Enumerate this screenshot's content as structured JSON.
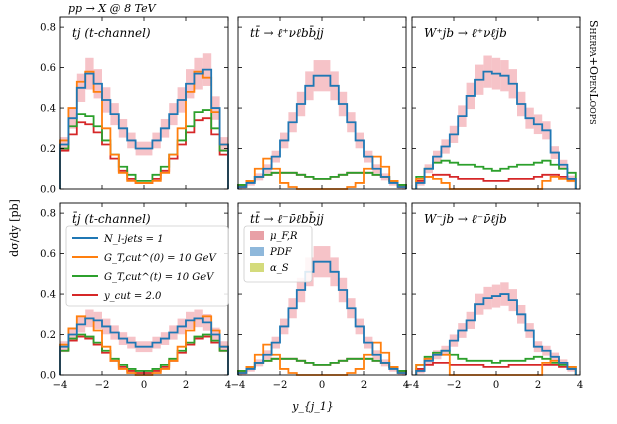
{
  "figure": {
    "process_label": "pp → X @ 8 TeV",
    "generator_label": "Sherpa+OpenLoops",
    "ylabel": "dσ/dy [pb]",
    "xlabel": "y_{j_1}",
    "xticks": [
      "−4",
      "−2",
      "0",
      "2",
      "4"
    ],
    "yticks": [
      "0.0",
      "0.2",
      "0.4",
      "0.6",
      "0.8"
    ]
  },
  "legend_cuts": [
    {
      "label": "N_l-jets = 1",
      "color": "#1f77b4"
    },
    {
      "label": "G_T,cut^(0) = 10 GeV",
      "color": "#ff7f0e"
    },
    {
      "label": "G_T,cut^(t) = 10 GeV",
      "color": "#2ca02c"
    },
    {
      "label": "y_cut = 2.0",
      "color": "#d62728"
    }
  ],
  "legend_unc": [
    {
      "label": "μ_F,R",
      "color": "#e8a0a6"
    },
    {
      "label": "PDF",
      "color": "#8fb8db"
    },
    {
      "label": "α_S",
      "color": "#d4db7c"
    }
  ],
  "colors": {
    "blue": "#1f77b4",
    "orange": "#ff7f0e",
    "green": "#2ca02c",
    "red": "#d62728",
    "band": "#f2a9b0"
  },
  "chart_data": [
    {
      "type": "line",
      "title": "tj (t-channel)",
      "xlim": [
        -4,
        4
      ],
      "ylim": [
        0,
        0.85
      ],
      "xlabel": "y_{j_1}",
      "ylabel": "dσ/dy [pb]",
      "x": [
        -3.8,
        -3.4,
        -3.0,
        -2.6,
        -2.2,
        -1.8,
        -1.4,
        -1.0,
        -0.6,
        -0.2,
        0.2,
        0.6,
        1.0,
        1.4,
        1.8,
        2.2,
        2.6,
        3.0,
        3.4,
        3.8
      ],
      "series": [
        {
          "name": "N_l-jets = 1",
          "values": [
            0.22,
            0.35,
            0.5,
            0.57,
            0.52,
            0.44,
            0.37,
            0.3,
            0.24,
            0.2,
            0.2,
            0.24,
            0.3,
            0.37,
            0.44,
            0.52,
            0.57,
            0.59,
            0.4,
            0.22
          ]
        },
        {
          "name": "G_T,cut^(0) = 10 GeV",
          "values": [
            0.24,
            0.4,
            0.53,
            0.58,
            0.48,
            0.3,
            0.17,
            0.08,
            0.04,
            0.03,
            0.03,
            0.04,
            0.08,
            0.17,
            0.3,
            0.48,
            0.58,
            0.55,
            0.38,
            0.22
          ]
        },
        {
          "name": "G_T,cut^(t) = 10 GeV",
          "values": [
            0.2,
            0.31,
            0.37,
            0.36,
            0.31,
            0.24,
            0.17,
            0.11,
            0.07,
            0.04,
            0.04,
            0.07,
            0.11,
            0.17,
            0.24,
            0.31,
            0.38,
            0.39,
            0.3,
            0.19
          ]
        },
        {
          "name": "y_cut = 2.0",
          "values": [
            0.19,
            0.27,
            0.33,
            0.32,
            0.28,
            0.22,
            0.15,
            0.09,
            0.05,
            0.03,
            0.03,
            0.05,
            0.09,
            0.15,
            0.22,
            0.28,
            0.34,
            0.35,
            0.27,
            0.17
          ]
        }
      ]
    },
    {
      "type": "line",
      "title": "tt̄ → ℓ⁺νℓbb̄jj",
      "xlim": [
        -4,
        4
      ],
      "ylim": [
        0,
        0.85
      ],
      "x": [
        -3.8,
        -3.4,
        -3.0,
        -2.6,
        -2.2,
        -1.8,
        -1.4,
        -1.0,
        -0.6,
        -0.2,
        0.2,
        0.6,
        1.0,
        1.4,
        1.8,
        2.2,
        2.6,
        3.0,
        3.4,
        3.8
      ],
      "series": [
        {
          "name": "N_l-jets = 1",
          "values": [
            0.01,
            0.03,
            0.06,
            0.1,
            0.16,
            0.24,
            0.33,
            0.42,
            0.51,
            0.56,
            0.56,
            0.51,
            0.42,
            0.33,
            0.24,
            0.16,
            0.1,
            0.06,
            0.03,
            0.01
          ]
        },
        {
          "name": "G_T,cut^(0) = 10 GeV",
          "values": [
            0.01,
            0.04,
            0.1,
            0.15,
            0.1,
            0.03,
            0.01,
            0.0,
            0.0,
            0.0,
            0.0,
            0.0,
            0.0,
            0.01,
            0.03,
            0.1,
            0.16,
            0.11,
            0.04,
            0.01
          ]
        },
        {
          "name": "G_T,cut^(t) = 10 GeV",
          "values": [
            0.02,
            0.04,
            0.06,
            0.07,
            0.08,
            0.08,
            0.08,
            0.07,
            0.06,
            0.05,
            0.05,
            0.06,
            0.07,
            0.08,
            0.08,
            0.08,
            0.07,
            0.06,
            0.04,
            0.02
          ]
        },
        {
          "name": "y_cut = 2.0",
          "values": [
            0.02,
            0.04,
            0.06,
            0.07,
            0.08,
            0.08,
            0.08,
            0.07,
            0.06,
            0.05,
            0.05,
            0.06,
            0.07,
            0.08,
            0.08,
            0.08,
            0.07,
            0.06,
            0.04,
            0.02
          ]
        }
      ]
    },
    {
      "type": "line",
      "title": "W⁺jb → ℓ⁺νℓjb",
      "xlim": [
        -4,
        4
      ],
      "ylim": [
        0,
        0.85
      ],
      "x": [
        -3.6,
        -3.2,
        -2.8,
        -2.4,
        -2.0,
        -1.6,
        -1.2,
        -0.8,
        -0.4,
        0.0,
        0.4,
        0.8,
        1.2,
        1.6,
        2.0,
        2.4,
        2.8,
        3.2,
        3.6
      ],
      "series": [
        {
          "name": "N_l-jets = 1",
          "values": [
            0.03,
            0.1,
            0.16,
            0.21,
            0.27,
            0.36,
            0.46,
            0.54,
            0.58,
            0.57,
            0.56,
            0.52,
            0.42,
            0.35,
            0.32,
            0.29,
            0.18,
            0.12,
            0.05
          ]
        },
        {
          "name": "G_T,cut^(0) = 10 GeV",
          "values": [
            0.05,
            0.06,
            0.05,
            0.03,
            0.0,
            0.0,
            0.0,
            0.0,
            0.0,
            0.0,
            0.0,
            0.0,
            0.0,
            0.0,
            0.0,
            0.04,
            0.06,
            0.05,
            0.04
          ]
        },
        {
          "name": "G_T,cut^(t) = 10 GeV",
          "values": [
            0.06,
            0.1,
            0.13,
            0.14,
            0.13,
            0.12,
            0.12,
            0.11,
            0.1,
            0.09,
            0.1,
            0.11,
            0.12,
            0.12,
            0.13,
            0.14,
            0.12,
            0.1,
            0.08
          ]
        },
        {
          "name": "y_cut = 2.0",
          "values": [
            0.04,
            0.06,
            0.07,
            0.07,
            0.06,
            0.05,
            0.05,
            0.05,
            0.04,
            0.04,
            0.04,
            0.05,
            0.05,
            0.05,
            0.06,
            0.07,
            0.07,
            0.06,
            0.05
          ]
        }
      ]
    },
    {
      "type": "line",
      "title": "t̄j (t-channel)",
      "xlim": [
        -4,
        4
      ],
      "ylim": [
        0,
        0.85
      ],
      "x": [
        -3.8,
        -3.4,
        -3.0,
        -2.6,
        -2.2,
        -1.8,
        -1.4,
        -1.0,
        -0.6,
        -0.2,
        0.2,
        0.6,
        1.0,
        1.4,
        1.8,
        2.2,
        2.6,
        3.0,
        3.4,
        3.8
      ],
      "series": [
        {
          "name": "N_l-jets = 1",
          "values": [
            0.14,
            0.2,
            0.25,
            0.28,
            0.27,
            0.24,
            0.21,
            0.18,
            0.16,
            0.14,
            0.14,
            0.16,
            0.18,
            0.21,
            0.24,
            0.27,
            0.28,
            0.26,
            0.2,
            0.14
          ]
        },
        {
          "name": "G_T,cut^(0) = 10 GeV",
          "values": [
            0.15,
            0.23,
            0.29,
            0.28,
            0.22,
            0.14,
            0.07,
            0.03,
            0.01,
            0.0,
            0.0,
            0.01,
            0.03,
            0.07,
            0.14,
            0.22,
            0.28,
            0.29,
            0.22,
            0.14
          ]
        },
        {
          "name": "G_T,cut^(t) = 10 GeV",
          "values": [
            0.12,
            0.18,
            0.2,
            0.19,
            0.16,
            0.12,
            0.08,
            0.05,
            0.03,
            0.02,
            0.02,
            0.03,
            0.05,
            0.08,
            0.12,
            0.16,
            0.19,
            0.2,
            0.17,
            0.12
          ]
        },
        {
          "name": "y_cut = 2.0",
          "values": [
            0.12,
            0.17,
            0.19,
            0.18,
            0.15,
            0.11,
            0.07,
            0.04,
            0.02,
            0.01,
            0.01,
            0.02,
            0.04,
            0.07,
            0.11,
            0.15,
            0.18,
            0.19,
            0.16,
            0.12
          ]
        }
      ]
    },
    {
      "type": "line",
      "title": "tt̄ → ℓ⁻ν̄ℓbb̄jj",
      "xlim": [
        -4,
        4
      ],
      "ylim": [
        0,
        0.85
      ],
      "x": [
        -3.8,
        -3.4,
        -3.0,
        -2.6,
        -2.2,
        -1.8,
        -1.4,
        -1.0,
        -0.6,
        -0.2,
        0.2,
        0.6,
        1.0,
        1.4,
        1.8,
        2.2,
        2.6,
        3.0,
        3.4,
        3.8
      ],
      "series": [
        {
          "name": "N_l-jets = 1",
          "values": [
            0.01,
            0.03,
            0.06,
            0.1,
            0.16,
            0.24,
            0.33,
            0.42,
            0.51,
            0.56,
            0.56,
            0.51,
            0.42,
            0.33,
            0.24,
            0.16,
            0.1,
            0.06,
            0.03,
            0.01
          ]
        },
        {
          "name": "G_T,cut^(0) = 10 GeV",
          "values": [
            0.01,
            0.04,
            0.1,
            0.15,
            0.1,
            0.03,
            0.01,
            0.0,
            0.0,
            0.0,
            0.0,
            0.0,
            0.0,
            0.01,
            0.03,
            0.1,
            0.16,
            0.11,
            0.04,
            0.01
          ]
        },
        {
          "name": "G_T,cut^(t) = 10 GeV",
          "values": [
            0.02,
            0.04,
            0.06,
            0.07,
            0.08,
            0.08,
            0.08,
            0.07,
            0.06,
            0.05,
            0.05,
            0.06,
            0.07,
            0.08,
            0.08,
            0.08,
            0.07,
            0.06,
            0.04,
            0.02
          ]
        },
        {
          "name": "y_cut = 2.0",
          "values": [
            0.02,
            0.04,
            0.06,
            0.07,
            0.08,
            0.08,
            0.08,
            0.07,
            0.06,
            0.05,
            0.05,
            0.06,
            0.07,
            0.08,
            0.08,
            0.08,
            0.07,
            0.06,
            0.04,
            0.02
          ]
        }
      ]
    },
    {
      "type": "line",
      "title": "W⁻jb → ℓ⁻ν̄ℓjb",
      "xlim": [
        -4,
        4
      ],
      "ylim": [
        0,
        0.85
      ],
      "x": [
        -3.6,
        -3.2,
        -2.8,
        -2.4,
        -2.0,
        -1.6,
        -1.2,
        -0.8,
        -0.4,
        0.0,
        0.4,
        0.8,
        1.2,
        1.6,
        2.0,
        2.4,
        2.8,
        3.2,
        3.6
      ],
      "series": [
        {
          "name": "N_l-jets = 1",
          "values": [
            0.02,
            0.07,
            0.1,
            0.12,
            0.17,
            0.22,
            0.27,
            0.35,
            0.38,
            0.39,
            0.4,
            0.37,
            0.3,
            0.22,
            0.14,
            0.12,
            0.09,
            0.06,
            0.03
          ]
        },
        {
          "name": "G_T,cut^(0) = 10 GeV",
          "values": [
            0.05,
            0.08,
            0.1,
            0.1,
            0.0,
            0.0,
            0.0,
            0.0,
            0.0,
            0.0,
            0.0,
            0.0,
            0.0,
            0.0,
            0.0,
            0.06,
            0.07,
            0.06,
            0.04
          ]
        },
        {
          "name": "G_T,cut^(t) = 10 GeV",
          "values": [
            0.05,
            0.09,
            0.11,
            0.12,
            0.1,
            0.08,
            0.07,
            0.07,
            0.07,
            0.06,
            0.07,
            0.07,
            0.07,
            0.08,
            0.09,
            0.08,
            0.06,
            0.05,
            0.04
          ]
        },
        {
          "name": "y_cut = 2.0",
          "values": [
            0.03,
            0.05,
            0.06,
            0.06,
            0.05,
            0.05,
            0.05,
            0.05,
            0.04,
            0.04,
            0.04,
            0.05,
            0.05,
            0.05,
            0.05,
            0.05,
            0.05,
            0.04,
            0.03
          ]
        }
      ]
    }
  ]
}
